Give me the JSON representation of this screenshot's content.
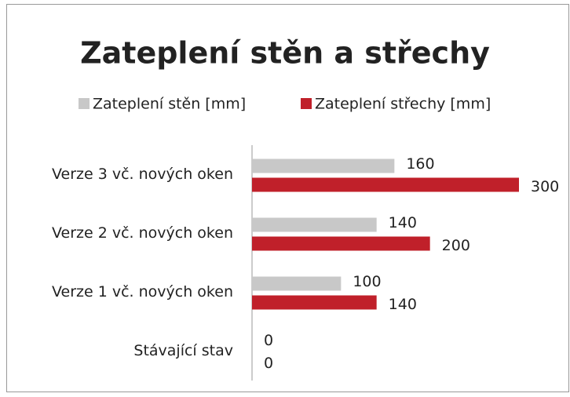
{
  "chart_data": {
    "type": "bar",
    "orientation": "horizontal",
    "title": "Zateplení stěn a střechy",
    "categories": [
      "Verze 3 vč. nových oken",
      "Verze 2 vč. nových oken",
      "Verze 1 vč. nových oken",
      "Stávající stav"
    ],
    "series": [
      {
        "name": "Zateplení stěn [mm]",
        "color": "#c8c8c8",
        "values": [
          160,
          140,
          100,
          0
        ]
      },
      {
        "name": "Zateplení střechy [mm]",
        "color": "#c0202a",
        "values": [
          300,
          200,
          140,
          0
        ]
      }
    ],
    "legend": "top"
  }
}
